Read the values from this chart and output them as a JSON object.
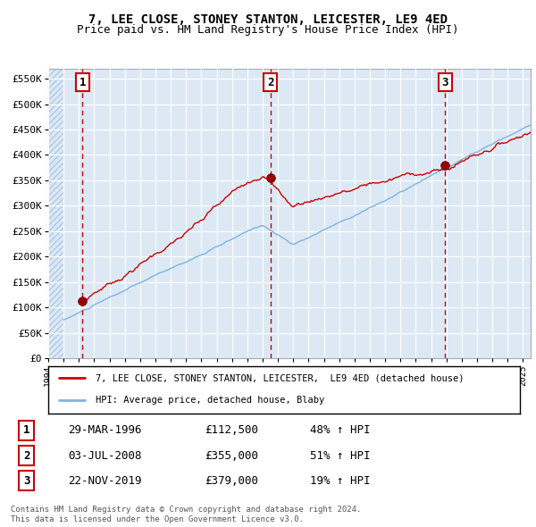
{
  "title1": "7, LEE CLOSE, STONEY STANTON, LEICESTER, LE9 4ED",
  "title2": "Price paid vs. HM Land Registry's House Price Index (HPI)",
  "ylim": [
    0,
    570000
  ],
  "xlim_start": 1994.0,
  "xlim_end": 2025.5,
  "yticks": [
    0,
    50000,
    100000,
    150000,
    200000,
    250000,
    300000,
    350000,
    400000,
    450000,
    500000,
    550000
  ],
  "ytick_labels": [
    "£0",
    "£50K",
    "£100K",
    "£150K",
    "£200K",
    "£250K",
    "£300K",
    "£350K",
    "£400K",
    "£450K",
    "£500K",
    "£550K"
  ],
  "xticks": [
    1994,
    1995,
    1996,
    1997,
    1998,
    1999,
    2000,
    2001,
    2002,
    2003,
    2004,
    2005,
    2006,
    2007,
    2008,
    2009,
    2010,
    2011,
    2012,
    2013,
    2014,
    2015,
    2016,
    2017,
    2018,
    2019,
    2020,
    2021,
    2022,
    2023,
    2024,
    2025
  ],
  "bg_color": "#dce9f5",
  "hatch_color": "#b0c8e8",
  "grid_color": "#ffffff",
  "red_line_color": "#cc0000",
  "blue_line_color": "#7fb3e0",
  "sale1_date": 1996.24,
  "sale1_price": 112500,
  "sale2_date": 2008.5,
  "sale2_price": 355000,
  "sale3_date": 2019.9,
  "sale3_price": 379000,
  "legend_line1": "7, LEE CLOSE, STONEY STANTON, LEICESTER,  LE9 4ED (detached house)",
  "legend_line2": "HPI: Average price, detached house, Blaby",
  "table_rows": [
    {
      "num": "1",
      "date": "29-MAR-1996",
      "price": "£112,500",
      "hpi": "48% ↑ HPI"
    },
    {
      "num": "2",
      "date": "03-JUL-2008",
      "price": "£355,000",
      "hpi": "51% ↑ HPI"
    },
    {
      "num": "3",
      "date": "22-NOV-2019",
      "price": "£379,000",
      "hpi": "19% ↑ HPI"
    }
  ],
  "footnote1": "Contains HM Land Registry data © Crown copyright and database right 2024.",
  "footnote2": "This data is licensed under the Open Government Licence v3.0."
}
